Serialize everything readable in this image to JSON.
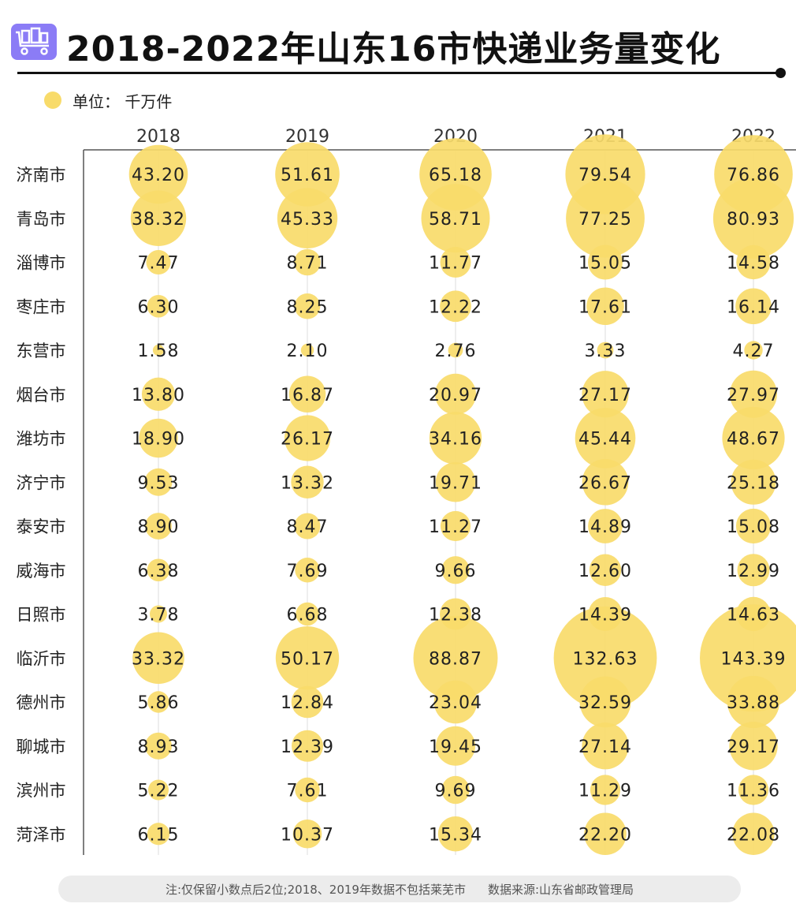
{
  "title": "2018-2022年山东16市快递业务量变化",
  "header_icon": "delivery-cart-icon",
  "legend": {
    "label": "单位：  千万件",
    "color": "#f8db6a"
  },
  "footnote": {
    "note": "注:仅保留小数点后2位;2018、2019年数据不包括莱芜市",
    "source": "数据来源:山东省邮政管理局"
  },
  "colors": {
    "bubble": "#f8db6a",
    "axis": "#555555",
    "gridline": "#dddddd"
  },
  "chart_data": {
    "type": "bubble-table",
    "title": "2018-2022年山东16市快递业务量变化",
    "unit": "千万件",
    "years": [
      "2018",
      "2019",
      "2020",
      "2021",
      "2022"
    ],
    "cities": [
      "济南市",
      "青岛市",
      "淄博市",
      "枣庄市",
      "东营市",
      "烟台市",
      "潍坊市",
      "济宁市",
      "泰安市",
      "威海市",
      "日照市",
      "临沂市",
      "德州市",
      "聊城市",
      "滨州市",
      "菏泽市"
    ],
    "values": [
      [
        "43.20",
        "51.61",
        "65.18",
        "79.54",
        "76.86"
      ],
      [
        "38.32",
        "45.33",
        "58.71",
        "77.25",
        "80.93"
      ],
      [
        "7.47",
        "8.71",
        "11.77",
        "15.05",
        "14.58"
      ],
      [
        "6.30",
        "8.25",
        "12.22",
        "17.61",
        "16.14"
      ],
      [
        "1.58",
        "2.10",
        "2.76",
        "3.33",
        "4.27"
      ],
      [
        "13.80",
        "16.87",
        "20.97",
        "27.17",
        "27.97"
      ],
      [
        "18.90",
        "26.17",
        "34.16",
        "45.44",
        "48.67"
      ],
      [
        "9.53",
        "13.32",
        "19.71",
        "26.67",
        "25.18"
      ],
      [
        "8.90",
        "8.47",
        "11.27",
        "14.89",
        "15.08"
      ],
      [
        "6.38",
        "7.69",
        "9.66",
        "12.60",
        "12.99"
      ],
      [
        "3.78",
        "6.68",
        "12.38",
        "14.39",
        "14.63"
      ],
      [
        "33.32",
        "50.17",
        "88.87",
        "132.63",
        "143.39"
      ],
      [
        "5.86",
        "12.84",
        "23.04",
        "32.59",
        "33.88"
      ],
      [
        "8.93",
        "12.39",
        "19.45",
        "27.14",
        "29.17"
      ],
      [
        "5.22",
        "7.61",
        "9.69",
        "11.29",
        "11.36"
      ],
      [
        "6.15",
        "10.37",
        "15.34",
        "22.20",
        "22.08"
      ]
    ],
    "grid": true
  }
}
